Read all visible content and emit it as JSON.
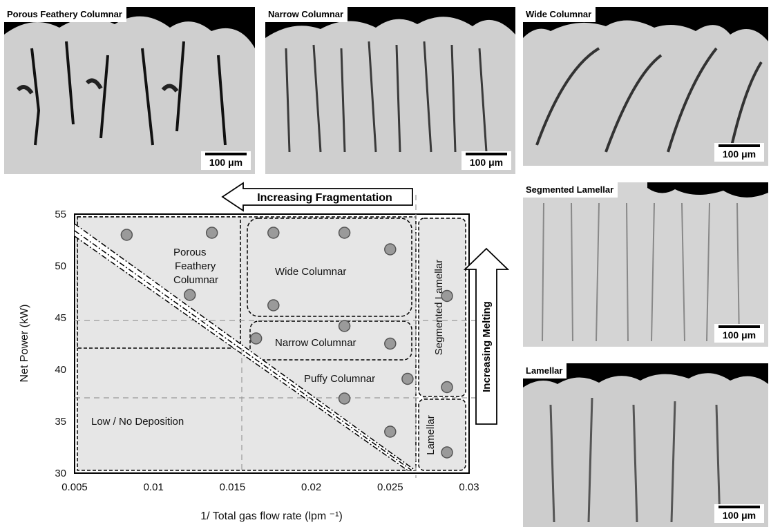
{
  "colors": {
    "micrograph": "#cfcfcf",
    "region_fill": "#e6e6e6",
    "marker_fill": "#9a9a9a",
    "marker_stroke": "#555555"
  },
  "micrographs": [
    {
      "title": "Porous Feathery Columnar",
      "scale": "100 μm"
    },
    {
      "title": "Narrow Columnar",
      "scale": "100 μm"
    },
    {
      "title": "Wide Columnar",
      "scale": "100 μm"
    },
    {
      "title": "Segmented Lamellar",
      "scale": "100 μm"
    },
    {
      "title": "Lamellar",
      "scale": "100 μm"
    }
  ],
  "arrows": {
    "fragmentation": "Increasing Fragmentation",
    "melting": "Increasing Melting"
  },
  "chart_data": {
    "type": "scatter",
    "xlabel": "1/ Total gas flow rate (lpm ⁻¹)",
    "ylabel": "Net Power (kW)",
    "xlim": [
      0.005,
      0.03
    ],
    "ylim": [
      30,
      55
    ],
    "xticks": [
      "0.005",
      "0.01",
      "0.015",
      "0.02",
      "0.025",
      "0.03"
    ],
    "yticks": [
      "30",
      "35",
      "40",
      "45",
      "50",
      "55"
    ],
    "grid": false,
    "points": [
      {
        "x": 0.0083,
        "y": 53.0
      },
      {
        "x": 0.0137,
        "y": 53.2
      },
      {
        "x": 0.0123,
        "y": 47.2
      },
      {
        "x": 0.0176,
        "y": 53.2
      },
      {
        "x": 0.0221,
        "y": 53.2
      },
      {
        "x": 0.025,
        "y": 51.6
      },
      {
        "x": 0.0176,
        "y": 46.2
      },
      {
        "x": 0.0165,
        "y": 43.0
      },
      {
        "x": 0.0221,
        "y": 44.2
      },
      {
        "x": 0.025,
        "y": 42.5
      },
      {
        "x": 0.0261,
        "y": 39.1
      },
      {
        "x": 0.0221,
        "y": 37.2
      },
      {
        "x": 0.025,
        "y": 34.0
      },
      {
        "x": 0.0286,
        "y": 47.1
      },
      {
        "x": 0.0286,
        "y": 38.3
      },
      {
        "x": 0.0286,
        "y": 32.0
      }
    ],
    "regions": [
      "Porous Feathery Columnar",
      "Wide Columnar",
      "Narrow Columnar",
      "Puffy Columnar",
      "Segmented Lamellar",
      "Lamellar",
      "Low / No Deposition"
    ],
    "reference_lines": {
      "x": 0.0268,
      "y": [
        44.8,
        37.2
      ],
      "x_left": 0.0153
    }
  }
}
